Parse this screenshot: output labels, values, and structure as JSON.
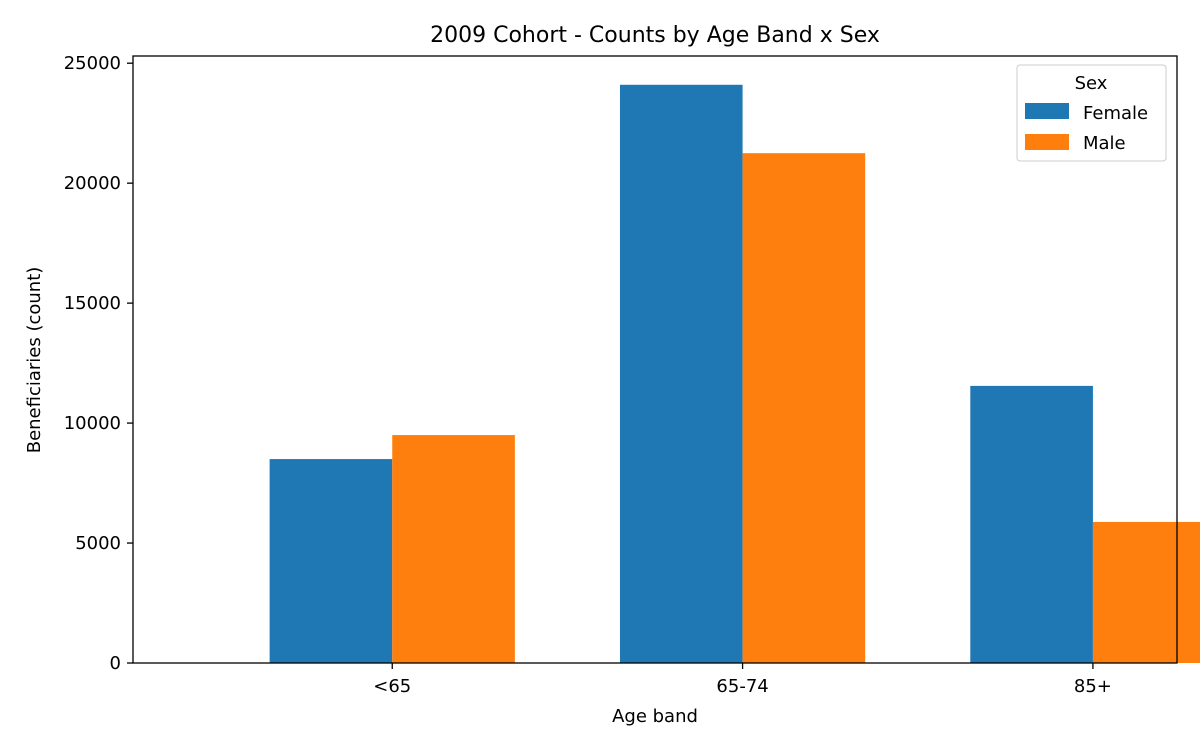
{
  "chart_data": {
    "type": "bar",
    "title": "2009 Cohort - Counts by Age Band x Sex",
    "xlabel": "Age band",
    "ylabel": "Beneficiaries (count)",
    "categories": [
      "<65",
      "65-74",
      "85+"
    ],
    "series": [
      {
        "name": "Female",
        "color": "#1f77b4",
        "values": [
          8500,
          24100,
          11550
        ]
      },
      {
        "name": "Male",
        "color": "#ff7f0e",
        "values": [
          9500,
          21250,
          5880
        ]
      }
    ],
    "ylim": [
      0,
      25300
    ],
    "yticks": [
      0,
      5000,
      10000,
      15000,
      20000,
      25000
    ],
    "grid": false,
    "legend": {
      "title": "Sex",
      "placement": "top-right"
    }
  }
}
